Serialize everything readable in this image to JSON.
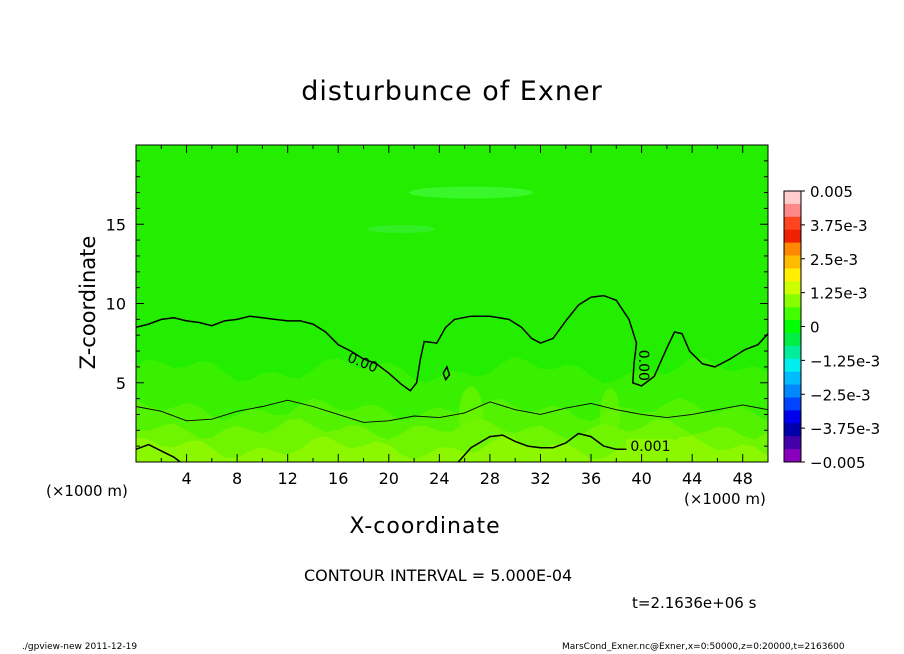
{
  "chart_data": {
    "type": "contour",
    "title": "disturbunce of Exner",
    "xlabel": "X-coordinate",
    "ylabel": "Z-coordinate",
    "x_unit_label": "(×1000 m)",
    "xlim": [
      0,
      50
    ],
    "ylim": [
      0,
      20
    ],
    "x_ticks": [
      4,
      8,
      12,
      16,
      20,
      24,
      28,
      32,
      36,
      40,
      44,
      48
    ],
    "y_ticks": [
      5,
      10,
      15
    ],
    "contour_interval_text": "CONTOUR INTERVAL = 5.000E-04",
    "time_text": "t=2.1636e+06 s",
    "contour_labels": [
      {
        "text": "0.00",
        "x": 17.8,
        "z": 6.0
      },
      {
        "text": "0.00",
        "x": 39.8,
        "z": 6.1
      },
      {
        "text": "0.001",
        "x": 40.7,
        "z": 0.7
      }
    ],
    "zero_contour": [
      [
        0,
        8.5
      ],
      [
        1,
        8.7
      ],
      [
        2,
        9.0
      ],
      [
        3,
        9.1
      ],
      [
        4,
        8.9
      ],
      [
        5,
        8.8
      ],
      [
        6,
        8.6
      ],
      [
        7,
        8.9
      ],
      [
        8,
        9.0
      ],
      [
        9,
        9.2
      ],
      [
        10,
        9.1
      ],
      [
        11,
        9.0
      ],
      [
        12,
        8.9
      ],
      [
        13,
        8.9
      ],
      [
        14,
        8.7
      ],
      [
        15,
        8.2
      ],
      [
        16,
        7.4
      ],
      [
        17,
        7.0
      ],
      [
        18,
        6.5
      ],
      [
        19,
        6.2
      ],
      [
        20,
        5.6
      ],
      [
        21,
        4.9
      ],
      [
        21.7,
        4.5
      ],
      [
        22.2,
        5.0
      ],
      [
        22.5,
        6.5
      ],
      [
        22.8,
        7.6
      ],
      [
        23.8,
        7.5
      ],
      [
        24.5,
        8.5
      ],
      [
        25.2,
        9.0
      ],
      [
        26.5,
        9.2
      ],
      [
        28,
        9.2
      ],
      [
        29.5,
        9.0
      ],
      [
        30.5,
        8.5
      ],
      [
        31.3,
        7.8
      ],
      [
        32,
        7.5
      ],
      [
        33,
        7.8
      ],
      [
        34,
        8.9
      ],
      [
        35,
        9.9
      ],
      [
        36,
        10.4
      ],
      [
        37,
        10.5
      ],
      [
        38,
        10.2
      ],
      [
        39,
        9.0
      ],
      [
        39.6,
        7.5
      ],
      [
        39.4,
        6.2
      ],
      [
        39.3,
        5.0
      ],
      [
        40,
        4.8
      ],
      [
        41,
        5.4
      ],
      [
        42,
        7.2
      ],
      [
        42.6,
        8.2
      ],
      [
        43.2,
        8.1
      ],
      [
        43.8,
        7.0
      ],
      [
        44.8,
        6.2
      ],
      [
        45.8,
        6.0
      ],
      [
        47,
        6.5
      ],
      [
        48.2,
        7.1
      ],
      [
        49.2,
        7.4
      ],
      [
        50,
        8.1
      ]
    ],
    "small_zero_contour": [
      [
        24.3,
        5.6
      ],
      [
        24.5,
        5.2
      ],
      [
        24.8,
        5.5
      ],
      [
        24.6,
        6.0
      ],
      [
        24.3,
        5.6
      ]
    ],
    "mid_contour": [
      [
        0,
        3.5
      ],
      [
        2,
        3.2
      ],
      [
        4,
        2.6
      ],
      [
        6,
        2.7
      ],
      [
        8,
        3.2
      ],
      [
        10,
        3.5
      ],
      [
        12,
        3.9
      ],
      [
        14,
        3.5
      ],
      [
        16,
        3.0
      ],
      [
        18,
        2.5
      ],
      [
        20,
        2.6
      ],
      [
        22,
        2.9
      ],
      [
        24,
        2.8
      ],
      [
        26,
        3.1
      ],
      [
        28,
        3.8
      ],
      [
        30,
        3.3
      ],
      [
        32,
        3.0
      ],
      [
        34,
        3.4
      ],
      [
        36,
        3.7
      ],
      [
        38,
        3.3
      ],
      [
        40,
        3.0
      ],
      [
        42,
        2.8
      ],
      [
        44,
        3.0
      ],
      [
        46,
        3.3
      ],
      [
        48,
        3.6
      ],
      [
        50,
        3.3
      ]
    ],
    "bottom_contour": [
      [
        0,
        0.8
      ],
      [
        1,
        1.1
      ],
      [
        2,
        0.7
      ],
      [
        3,
        0.3
      ],
      [
        3.5,
        0.0
      ]
    ],
    "bottom_contour_2": [
      [
        25.5,
        0.0
      ],
      [
        26.5,
        0.9
      ],
      [
        28,
        1.6
      ],
      [
        29,
        1.7
      ],
      [
        30,
        1.3
      ],
      [
        31,
        1.0
      ],
      [
        32,
        0.9
      ],
      [
        33,
        0.9
      ],
      [
        34,
        1.2
      ],
      [
        35,
        1.8
      ],
      [
        36,
        1.6
      ],
      [
        37,
        1.0
      ],
      [
        38,
        0.8
      ],
      [
        40,
        0.8
      ],
      [
        42,
        0.7
      ]
    ],
    "colorbar": {
      "levels": [
        "0.005",
        "3.75e-3",
        "2.5e-3",
        "1.25e-3",
        "0",
        "−1.25e-3",
        "−2.5e-3",
        "−3.75e-3",
        "−0.005"
      ],
      "colors": [
        "#ffcccc",
        "#ff8888",
        "#ff4422",
        "#ee2200",
        "#ff8800",
        "#ffbb00",
        "#ffee00",
        "#ccff00",
        "#88ff00",
        "#44ff00",
        "#00ff00",
        "#00ee44",
        "#00ee99",
        "#00eeee",
        "#00bbff",
        "#0088ff",
        "#0044ff",
        "#0000ee",
        "#0000aa",
        "#4400aa",
        "#8800bb"
      ]
    }
  },
  "footer": {
    "left": "./gpview-new   2011-12-19",
    "right": "MarsCond_Exner.nc@Exner,x=0:50000,z=0:20000,t=2163600"
  },
  "colors": {
    "top_fill": "#23ee00",
    "band1": "#38f000",
    "band2": "#52f200",
    "band3": "#6ff500",
    "band4": "#8cf800",
    "light_streak": "#4dff4d",
    "faint_streak": "#3df03d"
  }
}
